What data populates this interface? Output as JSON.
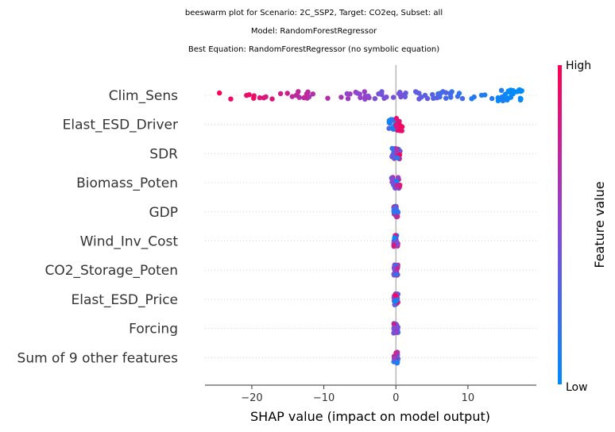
{
  "chart_data": {
    "type": "beeswarm",
    "title_lines": [
      "beeswarm plot for Scenario: 2C_SSP2, Target: CO2eq, Subset: all",
      "Model: RandomForestRegressor",
      "Best Equation: RandomForestRegressor (no symbolic equation)"
    ],
    "xlabel": "SHAP value (impact on model output)",
    "xlim": [
      -26.5,
      19.5
    ],
    "xticks": [
      -20,
      -10,
      0,
      10
    ],
    "xtick_labels": [
      "−20",
      "−10",
      "0",
      "10"
    ],
    "colorbar": {
      "title": "Feature value",
      "high_label": "High",
      "low_label": "Low",
      "low_color": "#008bfb",
      "high_color": "#ff0052"
    },
    "features": [
      {
        "name": "Clim_Sens",
        "min": -24.5,
        "max": 17.5,
        "spread": "wide"
      },
      {
        "name": "Elast_ESD_Driver",
        "min": -1.0,
        "max": 0.9,
        "spread": "narrow"
      },
      {
        "name": "SDR",
        "min": -0.6,
        "max": 0.6,
        "spread": "tiny"
      },
      {
        "name": "Biomass_Poten",
        "min": -0.6,
        "max": 0.6,
        "spread": "tiny"
      },
      {
        "name": "GDP",
        "min": -0.3,
        "max": 0.3,
        "spread": "tiny"
      },
      {
        "name": "Wind_Inv_Cost",
        "min": -0.3,
        "max": 0.3,
        "spread": "tiny"
      },
      {
        "name": "CO2_Storage_Poten",
        "min": -0.3,
        "max": 0.3,
        "spread": "tiny"
      },
      {
        "name": "Elast_ESD_Price",
        "min": -0.3,
        "max": 0.3,
        "spread": "tiny"
      },
      {
        "name": "Forcing",
        "min": -0.3,
        "max": 0.3,
        "spread": "tiny"
      },
      {
        "name": "Sum of 9 other features",
        "min": -0.3,
        "max": 0.3,
        "spread": "tiny"
      }
    ],
    "colors": {
      "zero_line": "#999999",
      "grid_line": "#cccccc",
      "axis": "#333333"
    }
  }
}
